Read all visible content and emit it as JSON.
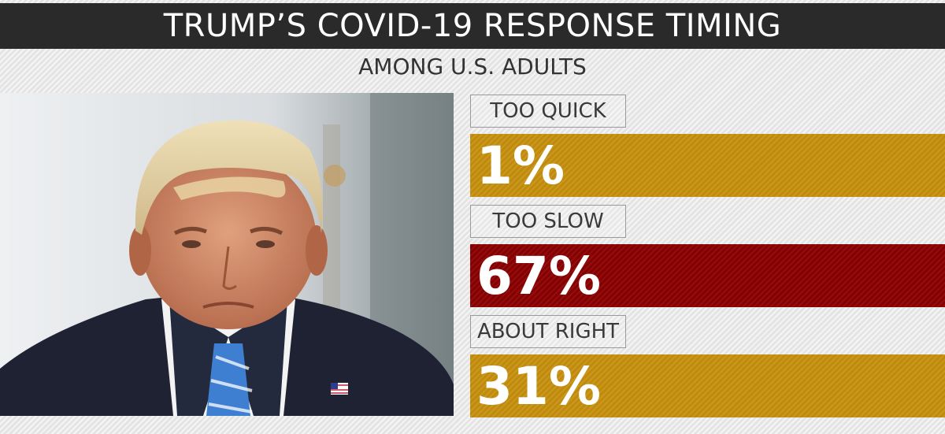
{
  "title": "TRUMP’S COVID-19 RESPONSE TIMING",
  "subtitle": "AMONG U.S. ADULTS",
  "colors": {
    "title_bg": "#2a2a2a",
    "gold": "#c8920f",
    "red": "#8c0000"
  },
  "photo": {
    "icon": "portrait-photo"
  },
  "chart_data": {
    "type": "bar",
    "orientation": "horizontal",
    "categories": [
      "TOO QUICK",
      "TOO SLOW",
      "ABOUT RIGHT"
    ],
    "values": [
      1,
      67,
      31
    ],
    "value_labels": [
      "1%",
      "67%",
      "31%"
    ],
    "unit": "%",
    "colors": [
      "#c8920f",
      "#8c0000",
      "#c8920f"
    ],
    "title": "TRUMP’S COVID-19 RESPONSE TIMING",
    "subtitle": "AMONG U.S. ADULTS",
    "grid": false,
    "legend": "none"
  }
}
